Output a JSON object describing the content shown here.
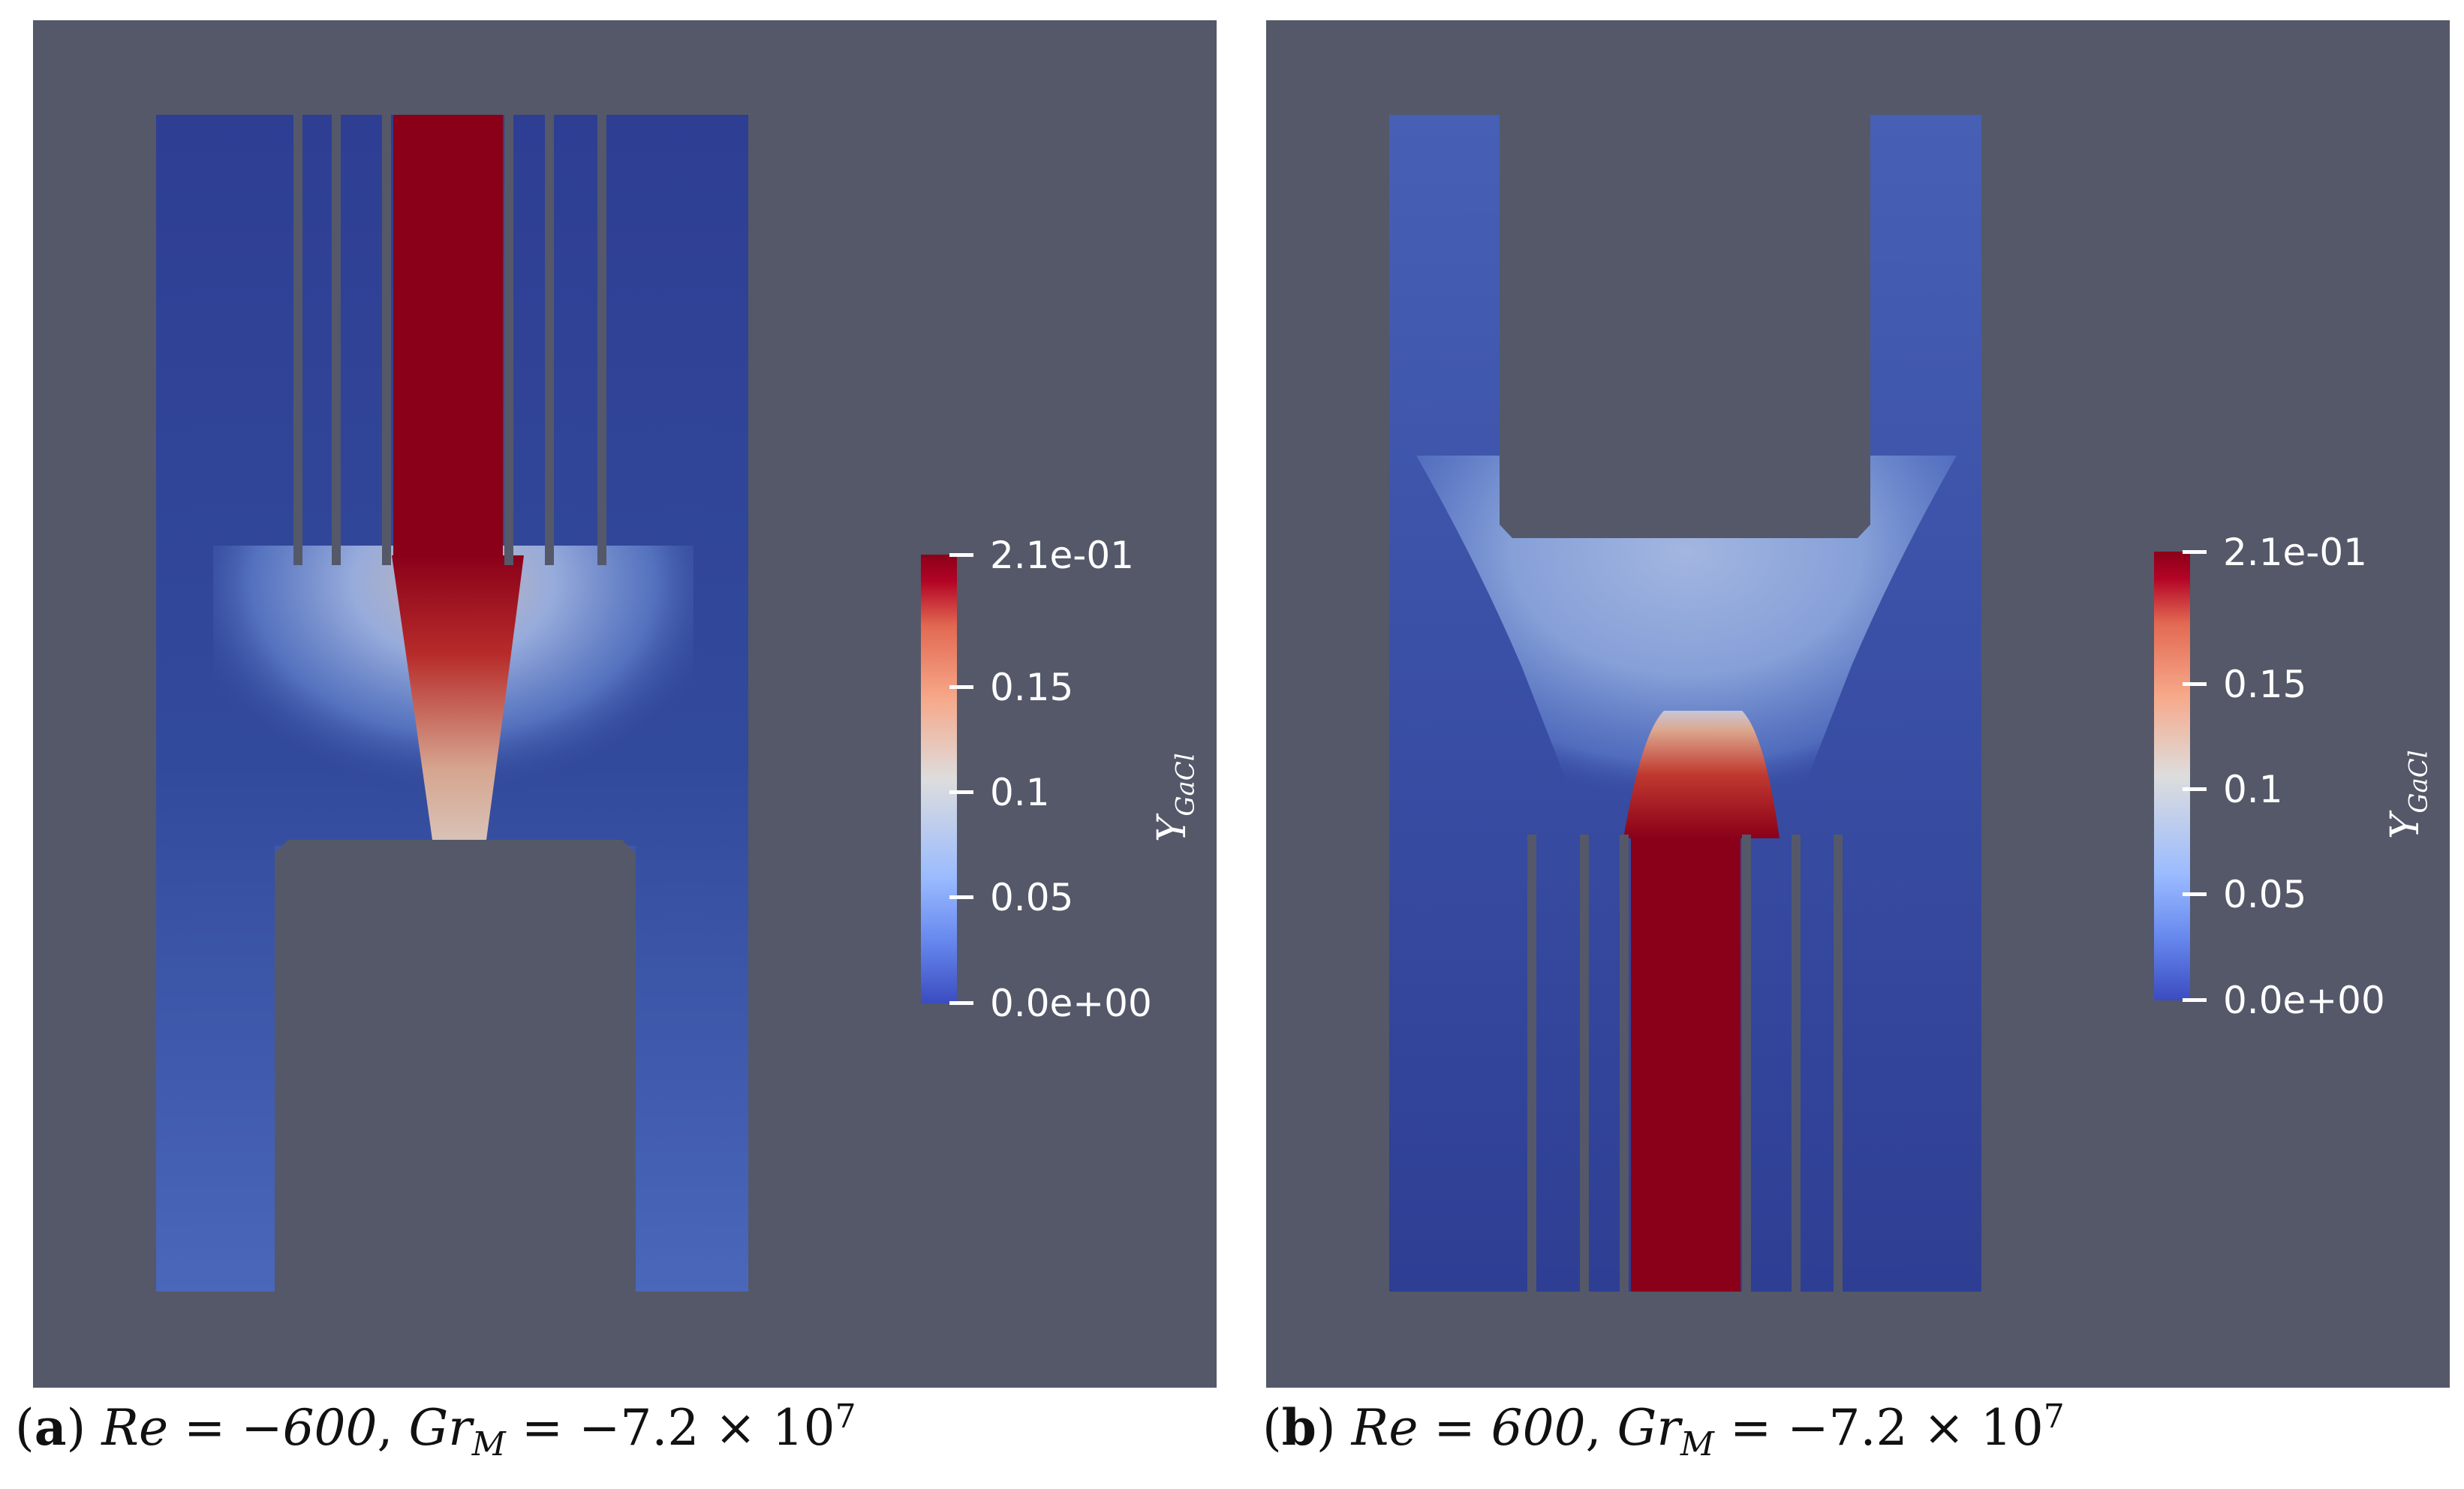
{
  "figure": {
    "panels": [
      {
        "id": "a",
        "caption_label": "a",
        "re_value": "Re = −600",
        "gr_value": "= −7.2 × 10",
        "gr_exponent": "7",
        "colorbar": {
          "title": "Y",
          "title_sub": "GaCl",
          "ticks": [
            "2.1e-01",
            "0.15",
            "0.1",
            "0.05",
            "0.0e+00"
          ],
          "range": [
            0.0,
            0.21
          ]
        }
      },
      {
        "id": "b",
        "caption_label": "b",
        "re_value": "Re = 600",
        "gr_value": "= −7.2 × 10",
        "gr_exponent": "7",
        "colorbar": {
          "title": "Y",
          "title_sub": "GaCl",
          "ticks": [
            "2.1e-01",
            "0.15",
            "0.1",
            "0.05",
            "0.0e+00"
          ],
          "range": [
            0.0,
            0.21
          ]
        }
      }
    ],
    "colors": {
      "background": "#545869",
      "low": "#3b4cc0",
      "mid": "#dddddd",
      "high": "#8a0019"
    }
  }
}
